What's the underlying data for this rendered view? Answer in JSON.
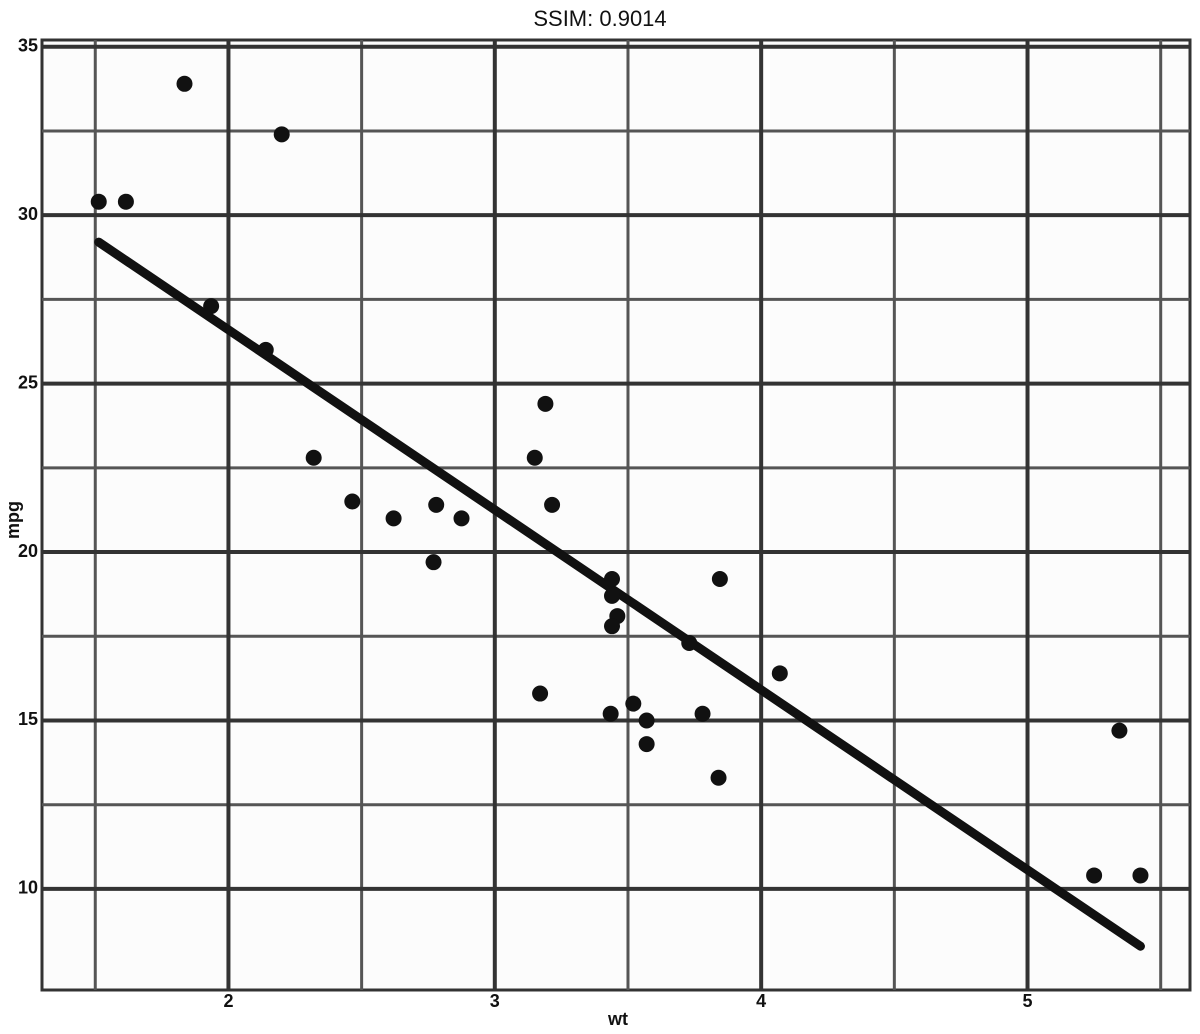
{
  "chart_data": {
    "type": "scatter",
    "title": "SSIM: 0.9014",
    "x_label": "wt",
    "y_label": "mpg",
    "x": [
      2.62,
      2.875,
      2.32,
      3.215,
      3.44,
      3.46,
      3.57,
      3.19,
      3.15,
      3.44,
      3.44,
      4.07,
      3.73,
      3.78,
      5.25,
      5.424,
      5.345,
      2.2,
      1.615,
      1.835,
      2.465,
      3.52,
      3.435,
      3.84,
      3.845,
      1.935,
      2.14,
      1.513,
      3.17,
      2.77,
      3.57,
      2.78
    ],
    "y": [
      21.0,
      21.0,
      22.8,
      21.4,
      18.7,
      18.1,
      14.3,
      24.4,
      22.8,
      19.2,
      17.8,
      16.4,
      17.3,
      15.2,
      10.4,
      10.4,
      14.7,
      32.4,
      30.4,
      33.9,
      21.5,
      15.5,
      15.2,
      13.3,
      19.2,
      27.3,
      26.0,
      30.4,
      15.8,
      19.7,
      15.0,
      21.4
    ],
    "color": "#111111",
    "trend": {
      "x": [
        1.513,
        5.424
      ],
      "y": [
        29.2,
        8.3
      ],
      "color": "#111111"
    },
    "xlim": [
      1.3,
      5.61
    ],
    "ylim": [
      7.0,
      35.2
    ],
    "xticks": [
      2,
      3,
      4,
      5
    ],
    "yticks": [
      10,
      15,
      20,
      25,
      30,
      35
    ],
    "xminor": [
      1.5,
      2.5,
      3.5,
      4.5,
      5.5
    ],
    "yminor": [
      12.5,
      17.5,
      22.5,
      27.5,
      32.5
    ],
    "grid": true
  }
}
